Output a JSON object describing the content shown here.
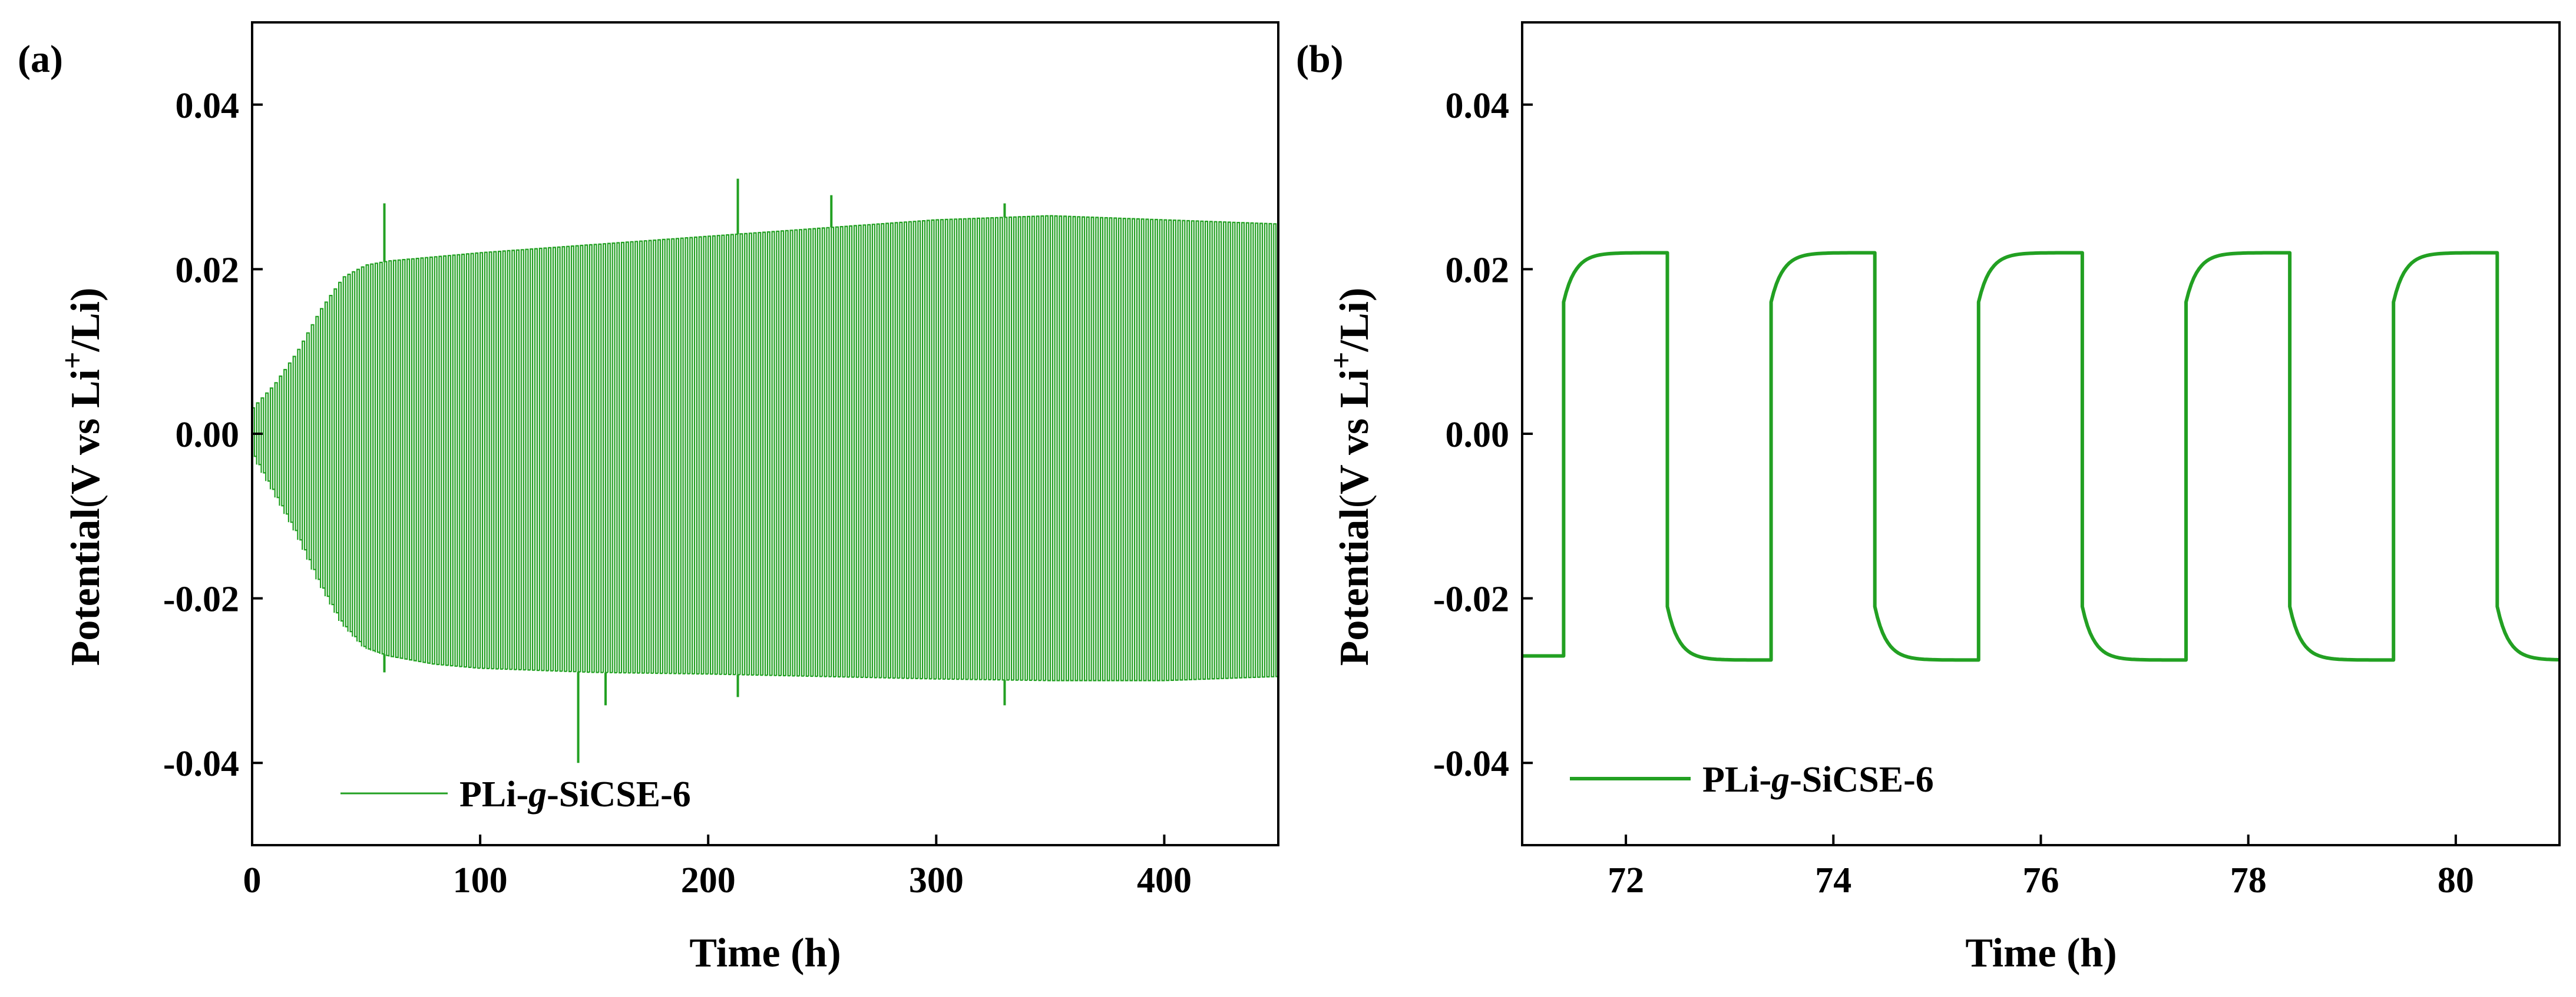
{
  "colors": {
    "series": "#22a022",
    "axis": "#000000",
    "background": "#ffffff"
  },
  "chart_data": [
    {
      "panel_label": "(a)",
      "type": "line",
      "title": "",
      "xlabel": "Time (h)",
      "ylabel_parts": [
        "Potential",
        "(",
        "V vs Li",
        "+",
        "/Li)"
      ],
      "xlim": [
        0,
        450
      ],
      "ylim": [
        -0.05,
        0.05
      ],
      "xticks": [
        0,
        100,
        200,
        300,
        400
      ],
      "xtick_labels": [
        "0",
        "100",
        "200",
        "300",
        "400"
      ],
      "yticks": [
        0.04,
        0.02,
        0.0,
        -0.02,
        -0.04
      ],
      "ytick_labels": [
        "0.04",
        "0.02",
        "0.00",
        "-0.02",
        "-0.04"
      ],
      "grid": false,
      "legend": {
        "label_prefix": "PLi-",
        "label_italic": "g",
        "label_suffix": "-SiCSE-6",
        "position": "bottom-left"
      },
      "series": [
        {
          "name": "PLi-g-SiCSE-6",
          "cycle_period_h": 2,
          "envelope_time_h": [
            0,
            10,
            20,
            30,
            40,
            50,
            60,
            80,
            100,
            150,
            200,
            250,
            300,
            350,
            400,
            450
          ],
          "envelope_upper": [
            0.003,
            0.006,
            0.01,
            0.015,
            0.019,
            0.0205,
            0.021,
            0.0215,
            0.022,
            0.023,
            0.024,
            0.025,
            0.026,
            0.0265,
            0.026,
            0.0255
          ],
          "envelope_lower": [
            -0.002,
            -0.007,
            -0.012,
            -0.018,
            -0.023,
            -0.026,
            -0.027,
            -0.028,
            -0.0285,
            -0.029,
            -0.0292,
            -0.0295,
            -0.0298,
            -0.03,
            -0.03,
            -0.0295
          ],
          "spikes": [
            {
              "x": 58,
              "y": 0.028
            },
            {
              "x": 58,
              "y": -0.029
            },
            {
              "x": 143,
              "y": -0.04
            },
            {
              "x": 155,
              "y": -0.033
            },
            {
              "x": 213,
              "y": 0.031
            },
            {
              "x": 213,
              "y": -0.032
            },
            {
              "x": 254,
              "y": 0.029
            },
            {
              "x": 330,
              "y": 0.028
            },
            {
              "x": 330,
              "y": -0.033
            }
          ]
        }
      ]
    },
    {
      "panel_label": "(b)",
      "type": "line",
      "title": "",
      "xlabel": "Time (h)",
      "ylabel_parts": [
        "Potential",
        "(",
        "V vs Li",
        "+",
        "/Li)"
      ],
      "xlim": [
        71,
        81
      ],
      "ylim": [
        -0.05,
        0.05
      ],
      "xticks": [
        72,
        74,
        76,
        78,
        80
      ],
      "xtick_labels": [
        "72",
        "74",
        "76",
        "78",
        "80"
      ],
      "yticks": [
        0.04,
        0.02,
        0.0,
        -0.02,
        -0.04
      ],
      "ytick_labels": [
        "0.04",
        "0.02",
        "0.00",
        "-0.02",
        "-0.04"
      ],
      "grid": false,
      "legend": {
        "label_prefix": "PLi-",
        "label_italic": "g",
        "label_suffix": "-SiCSE-6",
        "position": "bottom-left"
      },
      "series": [
        {
          "name": "PLi-g-SiCSE-6",
          "cycle_start_h": 71.4,
          "half_period_h": 1,
          "plateau_high": 0.022,
          "plateau_low": -0.0275,
          "step_high_start": 0.016,
          "step_low_start": -0.021,
          "x_start": 71,
          "x_end": 81,
          "initial_value": -0.027
        }
      ]
    }
  ]
}
